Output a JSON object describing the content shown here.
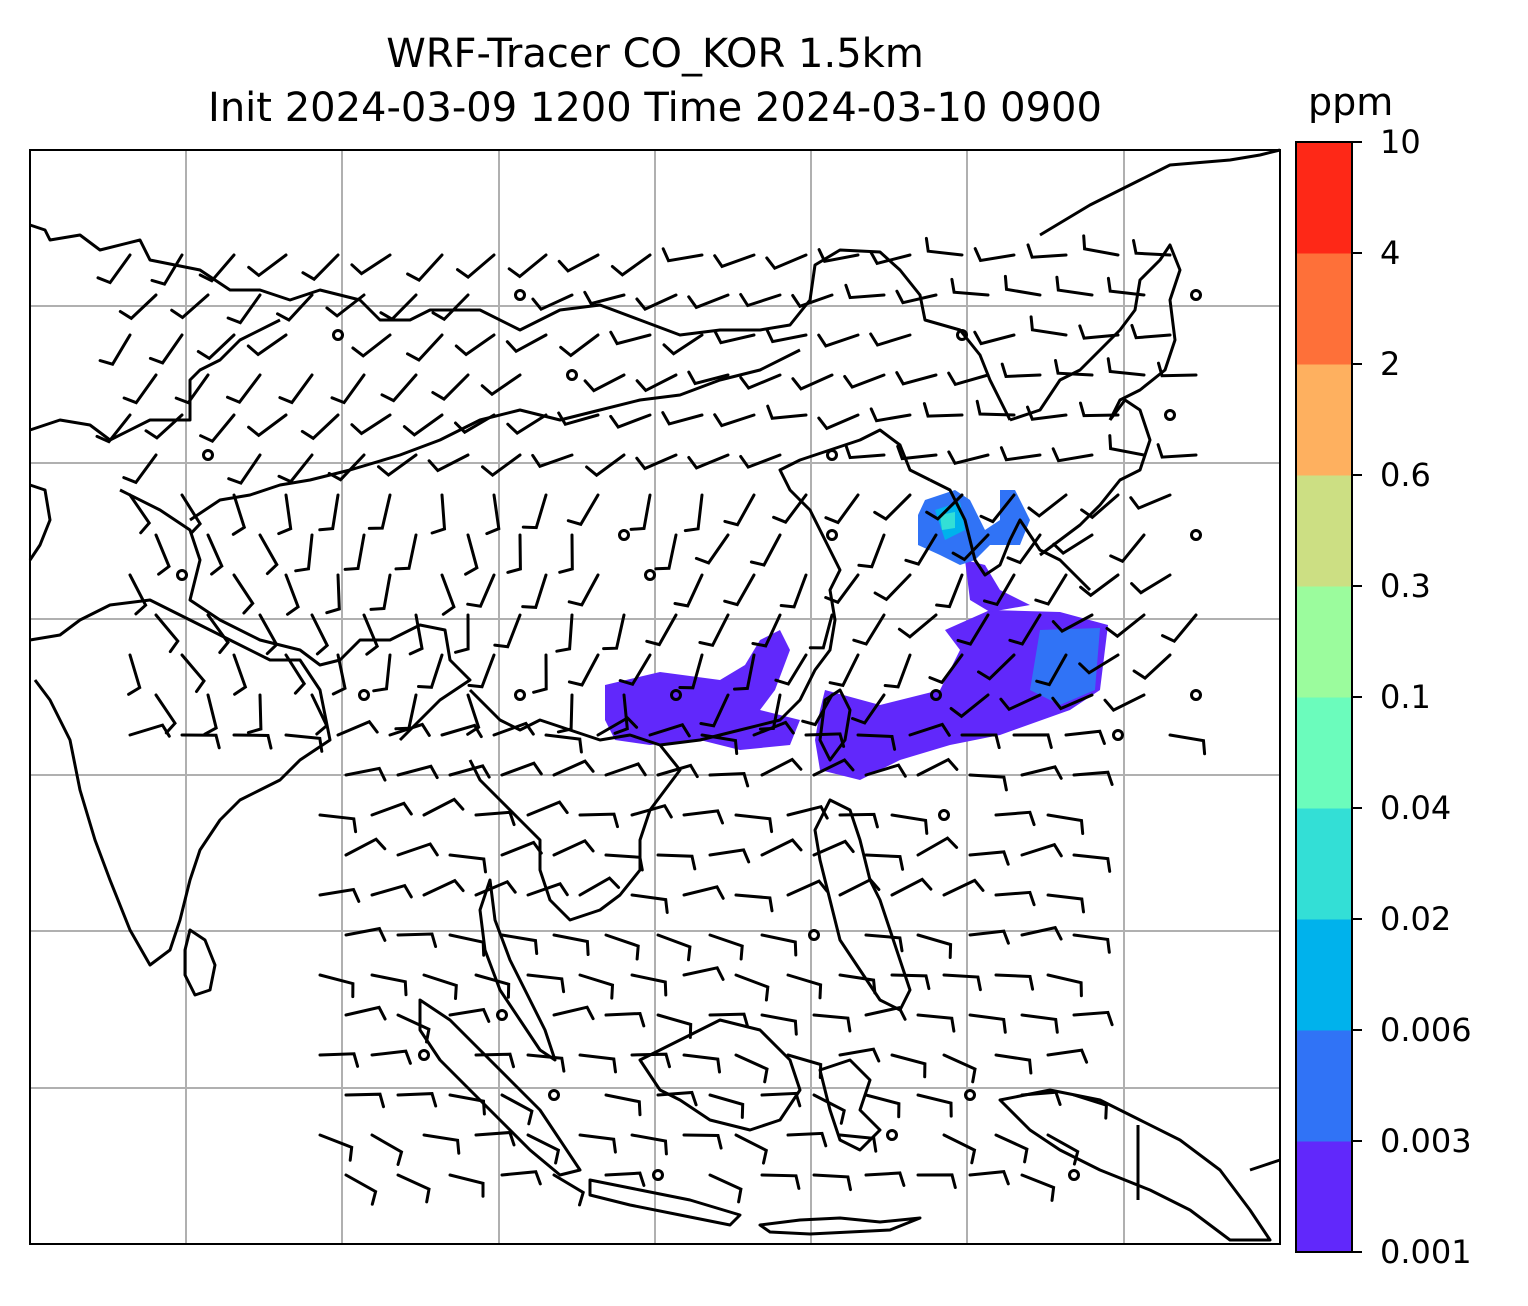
{
  "title": {
    "line1": "WRF-Tracer CO_KOR 1.5km",
    "line2": "Init 2024-03-09 1200 Time 2024-03-10 0900"
  },
  "colorbar": {
    "unit": "ppm",
    "ticks": [
      "0.001",
      "0.003",
      "0.006",
      "0.02",
      "0.04",
      "0.1",
      "0.3",
      "0.6",
      "2",
      "4",
      "10"
    ],
    "colors": [
      "#6128fb",
      "#3073f6",
      "#00b2ec",
      "#33dfd6",
      "#6bfcbc",
      "#9bfc9d",
      "#ccdf83",
      "#feb05f",
      "#fe7039",
      "#fe2817"
    ]
  },
  "map": {
    "frame_color": "#000000",
    "gridline_color": "#b0b0b0",
    "coastline_color": "#000000",
    "wind_barb_color": "#000000"
  }
}
